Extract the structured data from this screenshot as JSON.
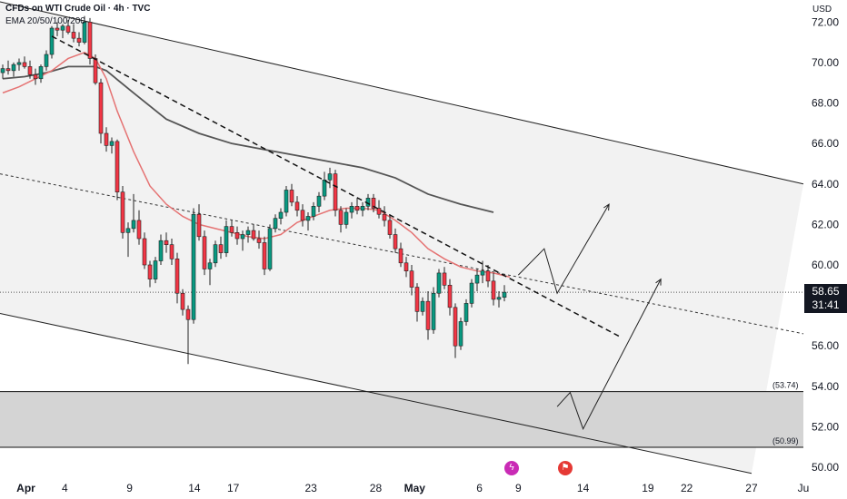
{
  "header": {
    "title": "CFDs on WTI Crude Oil · 4h · TVC",
    "indicator": "EMA 20/50/100/200",
    "currency": "USD"
  },
  "price_tag": {
    "price": "58.65",
    "countdown": "31:41"
  },
  "zones": {
    "upper_label": "(53.74)",
    "lower_label": "(50.99)"
  },
  "icons": {
    "event1": "lightning-bolt-icon",
    "event2": "us-flag-icon"
  },
  "colors": {
    "up": "#089981",
    "down": "#f23645",
    "ema_red": "#e57373",
    "ema_dark": "#555555",
    "channel_fill": "#f2f2f2",
    "zone_fill": "#d4d4d4",
    "line": "#222222"
  },
  "chart_data": {
    "type": "candlestick",
    "title": "CFDs on WTI Crude Oil · 4h · TVC",
    "y_axis": {
      "ylim": [
        49.6,
        73.0
      ],
      "ticks": [
        "72.00",
        "70.00",
        "68.00",
        "66.00",
        "64.00",
        "62.00",
        "60.00",
        "58.00",
        "56.00",
        "54.00",
        "52.00",
        "50.00"
      ]
    },
    "x_axis": {
      "range": [
        "2025-03-30",
        "2025-05-31"
      ],
      "ticks": [
        {
          "date": "2025-04-01",
          "label": "Apr",
          "bold": true
        },
        {
          "date": "2025-04-04",
          "label": "4"
        },
        {
          "date": "2025-04-09",
          "label": "9"
        },
        {
          "date": "2025-04-14",
          "label": "14"
        },
        {
          "date": "2025-04-17",
          "label": "17"
        },
        {
          "date": "2025-04-23",
          "label": "23"
        },
        {
          "date": "2025-04-28",
          "label": "28"
        },
        {
          "date": "2025-05-01",
          "label": "May",
          "bold": true
        },
        {
          "date": "2025-05-06",
          "label": "6"
        },
        {
          "date": "2025-05-09",
          "label": "9"
        },
        {
          "date": "2025-05-14",
          "label": "14"
        },
        {
          "date": "2025-05-19",
          "label": "19"
        },
        {
          "date": "2025-05-22",
          "label": "22"
        },
        {
          "date": "2025-05-27",
          "label": "27"
        },
        {
          "date": "2025-05-31",
          "label": "Ju"
        }
      ]
    },
    "current_price": 58.65,
    "candles_ohlc": [
      [
        69.5,
        69.9,
        69.2,
        69.7
      ],
      [
        69.7,
        70.1,
        69.4,
        69.6
      ],
      [
        69.6,
        70.0,
        69.3,
        69.9
      ],
      [
        69.9,
        70.2,
        69.6,
        70.0
      ],
      [
        70.0,
        70.3,
        69.7,
        69.8
      ],
      [
        69.8,
        70.1,
        69.2,
        69.4
      ],
      [
        69.4,
        69.7,
        68.9,
        69.2
      ],
      [
        69.2,
        69.9,
        69.0,
        69.8
      ],
      [
        69.8,
        70.6,
        69.6,
        70.4
      ],
      [
        70.4,
        71.8,
        70.2,
        71.7
      ],
      [
        71.7,
        72.0,
        71.3,
        71.6
      ],
      [
        71.6,
        71.9,
        71.2,
        71.8
      ],
      [
        71.8,
        72.1,
        71.4,
        71.5
      ],
      [
        71.5,
        71.9,
        71.0,
        71.2
      ],
      [
        71.2,
        71.5,
        70.8,
        71.0
      ],
      [
        71.0,
        72.3,
        70.9,
        72.0
      ],
      [
        72.0,
        72.2,
        69.9,
        70.2
      ],
      [
        70.2,
        70.4,
        68.9,
        69.0
      ],
      [
        69.0,
        69.2,
        66.0,
        66.5
      ],
      [
        66.5,
        66.8,
        65.6,
        65.9
      ],
      [
        65.9,
        66.3,
        65.5,
        66.1
      ],
      [
        66.1,
        66.2,
        63.2,
        63.6
      ],
      [
        63.6,
        63.9,
        61.3,
        61.6
      ],
      [
        61.6,
        62.1,
        60.4,
        61.8
      ],
      [
        61.8,
        63.5,
        61.6,
        62.2
      ],
      [
        62.2,
        62.7,
        61.0,
        61.3
      ],
      [
        61.3,
        61.6,
        59.8,
        60.0
      ],
      [
        60.0,
        60.2,
        58.9,
        59.3
      ],
      [
        59.3,
        60.4,
        59.1,
        60.2
      ],
      [
        60.2,
        61.5,
        60.0,
        61.2
      ],
      [
        61.2,
        61.6,
        60.6,
        61.0
      ],
      [
        61.0,
        61.3,
        60.0,
        60.3
      ],
      [
        60.3,
        60.6,
        58.1,
        58.6
      ],
      [
        58.6,
        58.8,
        57.5,
        57.8
      ],
      [
        57.8,
        58.0,
        55.1,
        57.3
      ],
      [
        57.3,
        62.8,
        57.1,
        62.5
      ],
      [
        62.5,
        63.0,
        61.2,
        61.4
      ],
      [
        61.4,
        61.7,
        59.5,
        59.8
      ],
      [
        59.8,
        60.3,
        59.0,
        60.1
      ],
      [
        60.1,
        61.2,
        59.9,
        61.0
      ],
      [
        61.0,
        61.4,
        60.3,
        60.6
      ],
      [
        60.6,
        62.2,
        60.4,
        61.9
      ],
      [
        61.9,
        62.2,
        61.4,
        61.6
      ],
      [
        61.6,
        61.9,
        61.0,
        61.3
      ],
      [
        61.3,
        61.7,
        60.7,
        61.5
      ],
      [
        61.5,
        61.9,
        61.1,
        61.7
      ],
      [
        61.7,
        62.0,
        61.2,
        61.3
      ],
      [
        61.3,
        61.7,
        60.8,
        61.1
      ],
      [
        61.1,
        61.4,
        59.5,
        59.8
      ],
      [
        59.8,
        62.0,
        59.7,
        61.8
      ],
      [
        61.8,
        62.5,
        61.6,
        62.3
      ],
      [
        62.3,
        62.8,
        62.0,
        62.6
      ],
      [
        62.6,
        63.9,
        62.4,
        63.7
      ],
      [
        63.7,
        64.0,
        62.9,
        63.1
      ],
      [
        63.1,
        63.4,
        62.4,
        62.7
      ],
      [
        62.7,
        63.0,
        61.9,
        62.2
      ],
      [
        62.2,
        62.6,
        61.7,
        62.4
      ],
      [
        62.4,
        63.1,
        62.2,
        62.9
      ],
      [
        62.9,
        63.6,
        62.6,
        63.4
      ],
      [
        63.4,
        64.6,
        63.2,
        64.2
      ],
      [
        64.2,
        64.8,
        63.8,
        64.5
      ],
      [
        64.5,
        64.7,
        62.4,
        62.7
      ],
      [
        62.7,
        62.9,
        61.6,
        62.0
      ],
      [
        62.0,
        62.8,
        61.8,
        62.6
      ],
      [
        62.6,
        63.1,
        62.3,
        62.9
      ],
      [
        62.9,
        63.3,
        62.5,
        62.7
      ],
      [
        62.7,
        63.1,
        62.4,
        62.9
      ],
      [
        62.9,
        63.5,
        62.7,
        63.3
      ],
      [
        63.3,
        63.5,
        62.6,
        62.8
      ],
      [
        62.8,
        63.2,
        62.3,
        62.5
      ],
      [
        62.5,
        62.9,
        61.9,
        62.2
      ],
      [
        62.2,
        62.5,
        61.3,
        61.5
      ],
      [
        61.5,
        61.8,
        60.6,
        60.8
      ],
      [
        60.8,
        61.1,
        59.9,
        60.1
      ],
      [
        60.1,
        60.4,
        59.4,
        59.7
      ],
      [
        59.7,
        60.0,
        58.5,
        58.9
      ],
      [
        58.9,
        59.1,
        57.2,
        57.7
      ],
      [
        57.7,
        58.4,
        57.5,
        58.2
      ],
      [
        58.2,
        58.7,
        56.3,
        56.8
      ],
      [
        56.8,
        58.9,
        56.6,
        58.6
      ],
      [
        58.6,
        59.8,
        58.4,
        59.6
      ],
      [
        59.6,
        59.9,
        58.8,
        59.0
      ],
      [
        59.0,
        59.3,
        57.5,
        57.9
      ],
      [
        57.9,
        58.1,
        55.4,
        56.0
      ],
      [
        56.0,
        57.4,
        55.8,
        57.2
      ],
      [
        57.2,
        58.3,
        57.0,
        58.1
      ],
      [
        58.1,
        59.3,
        57.9,
        59.1
      ],
      [
        59.1,
        59.8,
        58.7,
        59.5
      ],
      [
        59.5,
        60.2,
        59.1,
        59.7
      ],
      [
        59.7,
        60.0,
        58.9,
        59.2
      ],
      [
        59.2,
        59.6,
        58.0,
        58.3
      ],
      [
        58.3,
        58.7,
        57.9,
        58.4
      ],
      [
        58.4,
        59.0,
        58.2,
        58.65
      ]
    ],
    "ema_fast": [
      [
        0,
        68.5
      ],
      [
        3,
        68.8
      ],
      [
        6,
        69.2
      ],
      [
        9,
        69.6
      ],
      [
        12,
        70.2
      ],
      [
        15,
        70.5
      ],
      [
        17,
        70.2
      ],
      [
        19,
        69.2
      ],
      [
        21,
        67.6
      ],
      [
        24,
        65.6
      ],
      [
        27,
        63.9
      ],
      [
        30,
        63.0
      ],
      [
        33,
        62.4
      ],
      [
        36,
        62.0
      ],
      [
        39,
        61.8
      ],
      [
        42,
        61.6
      ],
      [
        45,
        61.4
      ],
      [
        48,
        61.3
      ],
      [
        51,
        61.5
      ],
      [
        54,
        62.1
      ],
      [
        57,
        62.4
      ],
      [
        60,
        62.7
      ],
      [
        63,
        62.8
      ],
      [
        66,
        62.8
      ],
      [
        69,
        62.7
      ],
      [
        72,
        62.2
      ],
      [
        75,
        61.6
      ],
      [
        78,
        60.8
      ],
      [
        81,
        60.3
      ],
      [
        84,
        59.9
      ],
      [
        87,
        59.7
      ],
      [
        90,
        59.6
      ],
      [
        93,
        59.4
      ]
    ],
    "ema_slow": [
      [
        0,
        69.2
      ],
      [
        4,
        69.3
      ],
      [
        8,
        69.5
      ],
      [
        12,
        69.8
      ],
      [
        17,
        69.8
      ],
      [
        19,
        69.6
      ],
      [
        24,
        68.5
      ],
      [
        30,
        67.2
      ],
      [
        36,
        66.5
      ],
      [
        42,
        66.0
      ],
      [
        48,
        65.7
      ],
      [
        54,
        65.4
      ],
      [
        60,
        65.1
      ],
      [
        66,
        64.8
      ],
      [
        72,
        64.3
      ],
      [
        78,
        63.5
      ],
      [
        84,
        63.0
      ],
      [
        90,
        62.6
      ]
    ],
    "channel": {
      "upper": {
        "from": [
          "2025-03-30",
          73.0
        ],
        "to": [
          "2025-05-31",
          64.0
        ]
      },
      "lower": {
        "from": [
          "2025-03-30",
          57.6
        ],
        "to": [
          "2025-05-27",
          49.7
        ]
      }
    },
    "mid_dotted_line": {
      "from": [
        "2025-03-30",
        64.5
      ],
      "to": [
        "2025-05-31",
        56.6
      ]
    },
    "trendline_dashed": {
      "from": [
        "2025-04-03",
        71.3
      ],
      "to": [
        "2025-05-17",
        56.4
      ]
    },
    "horizontal_dotted": 58.65,
    "zones": [
      {
        "from": 53.74,
        "to": 50.99,
        "labels": [
          "(53.74)",
          "(50.99)"
        ]
      }
    ],
    "projection_paths": [
      [
        [
          "2025-05-09",
          59.5
        ],
        [
          "2025-05-11",
          60.8
        ],
        [
          "2025-05-12",
          58.6
        ],
        [
          "2025-05-16",
          63.0
        ]
      ],
      [
        [
          "2025-05-12",
          53.0
        ],
        [
          "2025-05-13",
          53.7
        ],
        [
          "2025-05-14",
          51.9
        ],
        [
          "2025-05-20",
          59.3
        ]
      ]
    ]
  }
}
